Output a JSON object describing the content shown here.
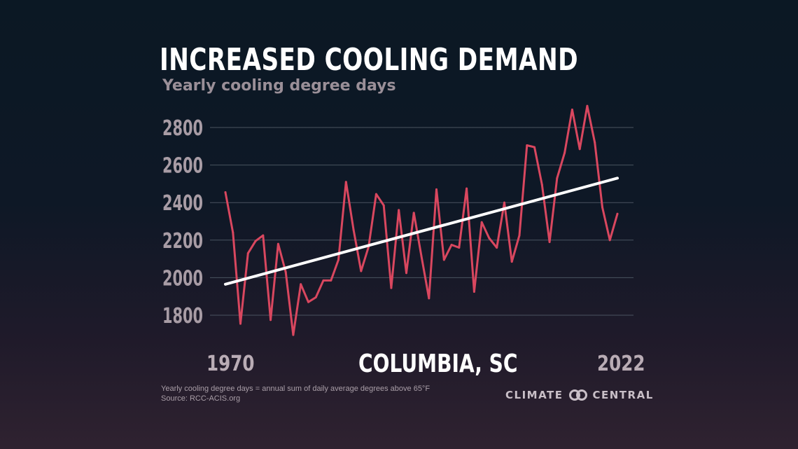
{
  "title": "INCREASED COOLING DEMAND",
  "subtitle": "Yearly cooling degree days",
  "location": "COLUMBIA, SC",
  "x_start_label": "1970",
  "x_end_label": "2022",
  "footnote_line1": "Yearly cooling degree days = annual sum of daily average degrees above 65°F",
  "footnote_line2": "Source: RCC-ACIS.org",
  "brand": {
    "left": "CLIMATE",
    "right": "CENTRAL",
    "icon": "climate-central-logo-icon"
  },
  "colors": {
    "line": "#d9475f",
    "trend": "#ffffff",
    "grid": "#4a5360"
  },
  "chart_data": {
    "type": "line",
    "title": "INCREASED COOLING DEMAND",
    "subtitle": "Yearly cooling degree days",
    "x": [
      1970,
      1971,
      1972,
      1973,
      1974,
      1975,
      1976,
      1977,
      1978,
      1979,
      1980,
      1981,
      1982,
      1983,
      1984,
      1985,
      1986,
      1987,
      1988,
      1989,
      1990,
      1991,
      1992,
      1993,
      1994,
      1995,
      1996,
      1997,
      1998,
      1999,
      2000,
      2001,
      2002,
      2003,
      2004,
      2005,
      2006,
      2007,
      2008,
      2009,
      2010,
      2011,
      2012,
      2013,
      2014,
      2015,
      2016,
      2017,
      2018,
      2019,
      2020,
      2021,
      2022
    ],
    "series": [
      {
        "values": [
          2455,
          2240,
          1755,
          2130,
          2195,
          2225,
          1775,
          2180,
          2030,
          1695,
          1965,
          1870,
          1895,
          1985,
          1985,
          2095,
          2510,
          2255,
          2035,
          2165,
          2445,
          2385,
          1945,
          2360,
          2025,
          2345,
          2115,
          1890,
          2470,
          2095,
          2175,
          2160,
          2475,
          1925,
          2295,
          2210,
          2160,
          2400,
          2085,
          2225,
          2705,
          2695,
          2495,
          2190,
          2530,
          2665,
          2895,
          2685,
          2915,
          2720,
          2375,
          2200,
          2340
        ]
      }
    ],
    "trend": {
      "start": [
        1970,
        1965
      ],
      "end": [
        2022,
        2530
      ]
    },
    "yticks": [
      1800,
      2000,
      2200,
      2400,
      2600,
      2800
    ],
    "ylim": [
      1700,
      2950
    ],
    "grid": true
  }
}
